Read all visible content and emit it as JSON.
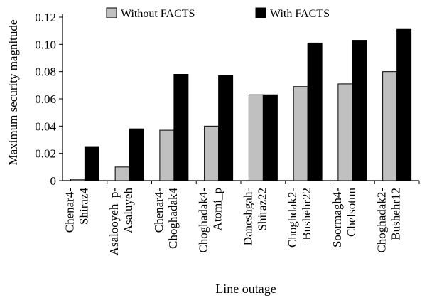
{
  "chart_data": {
    "type": "bar",
    "title": "",
    "xlabel": "Line outage",
    "ylabel": "Maximum security magnitude",
    "ylim": [
      0,
      0.12
    ],
    "yticks": [
      "0",
      "0.02",
      "0.04",
      "0.06",
      "0.08",
      "0.10",
      "0.12"
    ],
    "grid": false,
    "legend_position": "top",
    "categories": [
      [
        "Chenar4-",
        "Shiraz4"
      ],
      [
        "Asalooyeh_p-",
        "Asaluyeh"
      ],
      [
        "Chenar4-",
        "Choghadak4"
      ],
      [
        "Choghadak4-",
        "Atomi_p"
      ],
      [
        "Daneshgah-",
        "Shiraz22"
      ],
      [
        "Choghdak2-",
        "Bushehr22"
      ],
      [
        "Soormagh4-",
        "Chelsotun"
      ],
      [
        "Choghadak2-",
        "Bushehr12"
      ]
    ],
    "series": [
      {
        "name": "Without FACTS",
        "color": "#c0c0c0",
        "values": [
          0.001,
          0.01,
          0.037,
          0.04,
          0.063,
          0.069,
          0.071,
          0.08
        ]
      },
      {
        "name": "With FACTS",
        "color": "#000000",
        "values": [
          0.025,
          0.038,
          0.078,
          0.077,
          0.063,
          0.101,
          0.103,
          0.111
        ]
      }
    ]
  }
}
